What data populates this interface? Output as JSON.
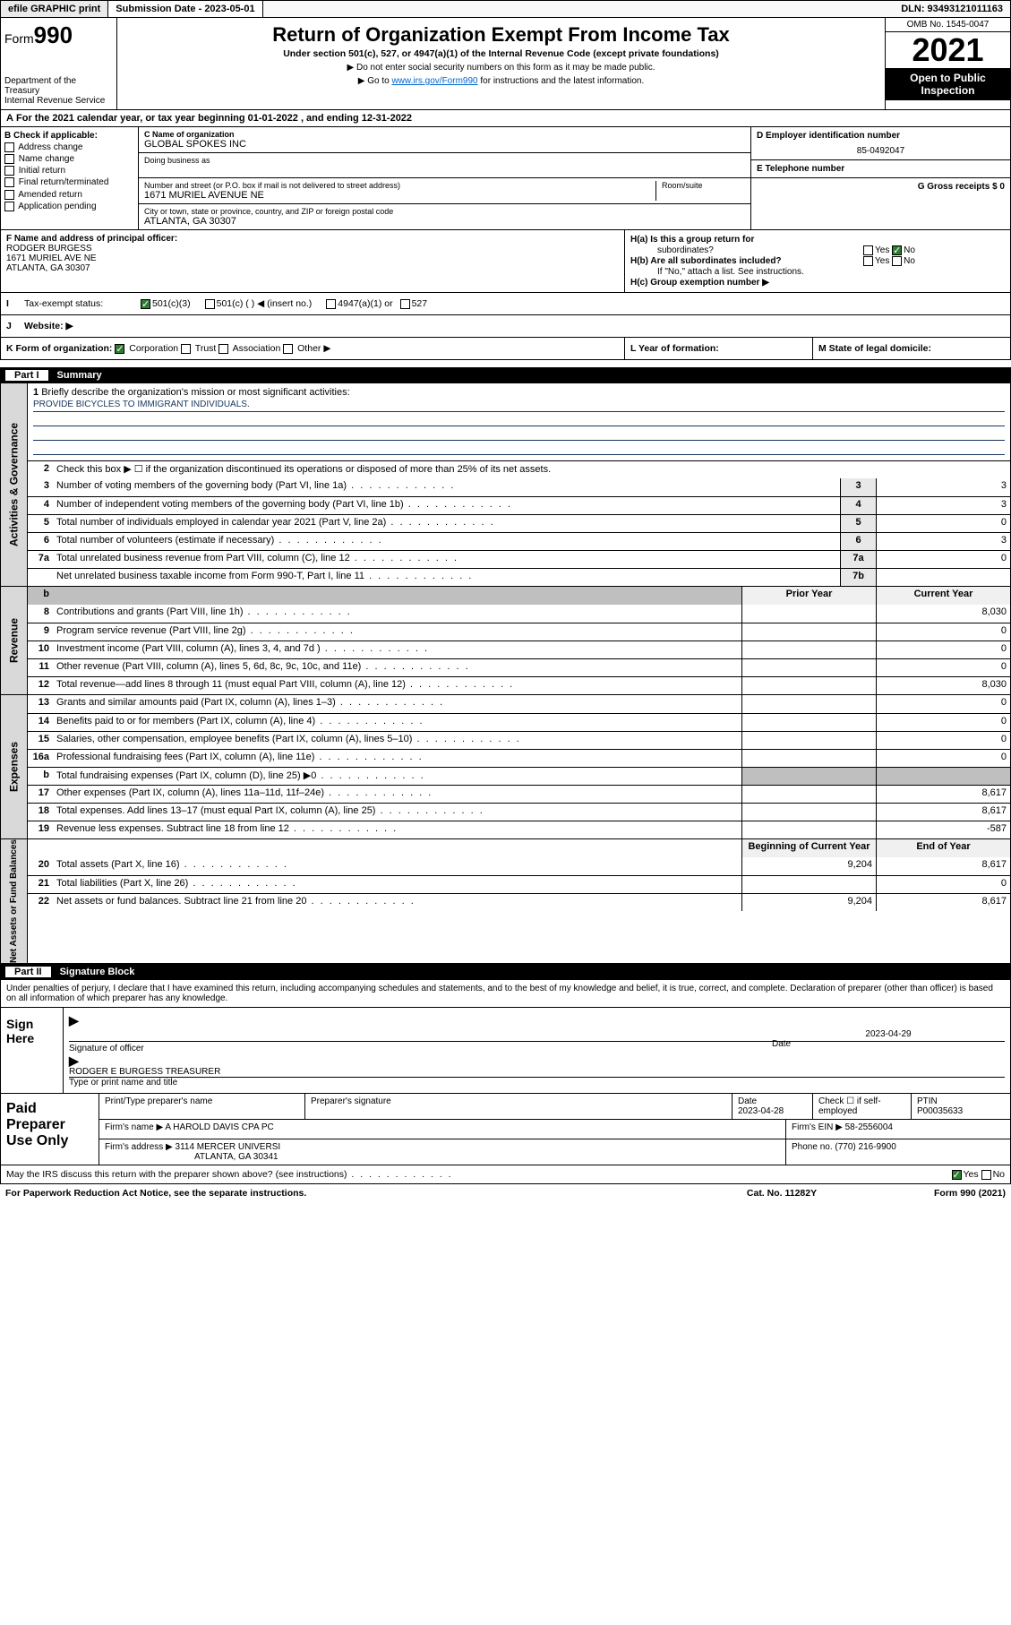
{
  "topbar": {
    "efile": "efile GRAPHIC print",
    "subdate_lbl": "Submission Date - 2023-05-01",
    "dln": "DLN: 93493121011163"
  },
  "header": {
    "form_prefix": "Form",
    "form_no": "990",
    "dept": "Department of the Treasury",
    "irs": "Internal Revenue Service",
    "title": "Return of Organization Exempt From Income Tax",
    "sub": "Under section 501(c), 527, or 4947(a)(1) of the Internal Revenue Code (except private foundations)",
    "line1": "▶ Do not enter social security numbers on this form as it may be made public.",
    "line2_pre": "▶ Go to ",
    "line2_link": "www.irs.gov/Form990",
    "line2_post": " for instructions and the latest information.",
    "omb": "OMB No. 1545-0047",
    "year": "2021",
    "open": "Open to Public Inspection"
  },
  "band_a": "For the 2021 calendar year, or tax year beginning 01-01-2022   , and ending 12-31-2022",
  "b": {
    "title": "B Check if applicable:",
    "opts": [
      "Address change",
      "Name change",
      "Initial return",
      "Final return/terminated",
      "Amended return",
      "Application pending"
    ]
  },
  "c": {
    "name_lbl": "C Name of organization",
    "name": "GLOBAL SPOKES INC",
    "dba_lbl": "Doing business as",
    "addr_lbl": "Number and street (or P.O. box if mail is not delivered to street address)",
    "room_lbl": "Room/suite",
    "addr": "1671 MURIEL AVENUE NE",
    "city_lbl": "City or town, state or province, country, and ZIP or foreign postal code",
    "city": "ATLANTA, GA  30307"
  },
  "d": {
    "lbl": "D Employer identification number",
    "val": "85-0492047"
  },
  "e": {
    "lbl": "E Telephone number",
    "val": ""
  },
  "g": {
    "lbl": "G Gross receipts $ 0"
  },
  "f": {
    "lbl": "F  Name and address of principal officer:",
    "name": "RODGER BURGESS",
    "addr1": "1671 MURIEL AVE NE",
    "addr2": "ATLANTA, GA  30307"
  },
  "h": {
    "ha": "H(a)  Is this a group return for",
    "ha2": "subordinates?",
    "hb": "H(b)  Are all subordinates included?",
    "hc1": "If \"No,\" attach a list. See instructions.",
    "hc2": "H(c)  Group exemption number ▶",
    "yes": "Yes",
    "no": "No"
  },
  "i": {
    "lbl": "Tax-exempt status:",
    "o1": "501(c)(3)",
    "o2": "501(c) (  ) ◀ (insert no.)",
    "o3": "4947(a)(1) or",
    "o4": "527"
  },
  "j": {
    "lbl": "Website: ▶"
  },
  "k": {
    "lbl": "K Form of organization:",
    "o1": "Corporation",
    "o2": "Trust",
    "o3": "Association",
    "o4": "Other ▶",
    "l": "L Year of formation:",
    "m": "M State of legal domicile:"
  },
  "part1": {
    "hdr": "Part I",
    "title": "Summary",
    "l1": "Briefly describe the organization's mission or most significant activities:",
    "mission": "PROVIDE BICYCLES TO IMMIGRANT INDIVIDUALS.",
    "l2": "Check this box ▶ ☐  if the organization discontinued its operations or disposed of more than 25% of its net assets.",
    "rows_gov": [
      {
        "n": "3",
        "d": "Number of voting members of the governing body (Part VI, line 1a)",
        "bn": "3",
        "v": "3"
      },
      {
        "n": "4",
        "d": "Number of independent voting members of the governing body (Part VI, line 1b)",
        "bn": "4",
        "v": "3"
      },
      {
        "n": "5",
        "d": "Total number of individuals employed in calendar year 2021 (Part V, line 2a)",
        "bn": "5",
        "v": "0"
      },
      {
        "n": "6",
        "d": "Total number of volunteers (estimate if necessary)",
        "bn": "6",
        "v": "3"
      },
      {
        "n": "7a",
        "d": "Total unrelated business revenue from Part VIII, column (C), line 12",
        "bn": "7a",
        "v": "0"
      },
      {
        "n": "",
        "d": "Net unrelated business taxable income from Form 990-T, Part I, line 11",
        "bn": "7b",
        "v": ""
      }
    ],
    "col_prior": "Prior Year",
    "col_curr": "Current Year",
    "rows_rev": [
      {
        "n": "8",
        "d": "Contributions and grants (Part VIII, line 1h)",
        "p": "",
        "c": "8,030"
      },
      {
        "n": "9",
        "d": "Program service revenue (Part VIII, line 2g)",
        "p": "",
        "c": "0"
      },
      {
        "n": "10",
        "d": "Investment income (Part VIII, column (A), lines 3, 4, and 7d )",
        "p": "",
        "c": "0"
      },
      {
        "n": "11",
        "d": "Other revenue (Part VIII, column (A), lines 5, 6d, 8c, 9c, 10c, and 11e)",
        "p": "",
        "c": "0"
      },
      {
        "n": "12",
        "d": "Total revenue—add lines 8 through 11 (must equal Part VIII, column (A), line 12)",
        "p": "",
        "c": "8,030"
      }
    ],
    "rows_exp": [
      {
        "n": "13",
        "d": "Grants and similar amounts paid (Part IX, column (A), lines 1–3)",
        "p": "",
        "c": "0"
      },
      {
        "n": "14",
        "d": "Benefits paid to or for members (Part IX, column (A), line 4)",
        "p": "",
        "c": "0"
      },
      {
        "n": "15",
        "d": "Salaries, other compensation, employee benefits (Part IX, column (A), lines 5–10)",
        "p": "",
        "c": "0"
      },
      {
        "n": "16a",
        "d": "Professional fundraising fees (Part IX, column (A), line 11e)",
        "p": "",
        "c": "0"
      },
      {
        "n": "b",
        "d": "Total fundraising expenses (Part IX, column (D), line 25) ▶0",
        "p": "shade",
        "c": "shade"
      },
      {
        "n": "17",
        "d": "Other expenses (Part IX, column (A), lines 11a–11d, 11f–24e)",
        "p": "",
        "c": "8,617"
      },
      {
        "n": "18",
        "d": "Total expenses. Add lines 13–17 (must equal Part IX, column (A), line 25)",
        "p": "",
        "c": "8,617"
      },
      {
        "n": "19",
        "d": "Revenue less expenses. Subtract line 18 from line 12",
        "p": "",
        "c": "-587"
      }
    ],
    "col_beg": "Beginning of Current Year",
    "col_end": "End of Year",
    "rows_net": [
      {
        "n": "20",
        "d": "Total assets (Part X, line 16)",
        "p": "9,204",
        "c": "8,617"
      },
      {
        "n": "21",
        "d": "Total liabilities (Part X, line 26)",
        "p": "",
        "c": "0"
      },
      {
        "n": "22",
        "d": "Net assets or fund balances. Subtract line 21 from line 20",
        "p": "9,204",
        "c": "8,617"
      }
    ],
    "side_gov": "Activities & Governance",
    "side_rev": "Revenue",
    "side_exp": "Expenses",
    "side_net": "Net Assets or Fund Balances"
  },
  "part2": {
    "hdr": "Part II",
    "title": "Signature Block",
    "decl": "Under penalties of perjury, I declare that I have examined this return, including accompanying schedules and statements, and to the best of my knowledge and belief, it is true, correct, and complete. Declaration of preparer (other than officer) is based on all information of which preparer has any knowledge.",
    "sign_here": "Sign Here",
    "sig_of_officer": "Signature of officer",
    "date_lbl": "Date",
    "date": "2023-04-29",
    "name_title": "RODGER E BURGESS TREASURER",
    "type_or_print": "Type or print name and title"
  },
  "paid": {
    "title": "Paid Preparer Use Only",
    "h1": "Print/Type preparer's name",
    "h2": "Preparer's signature",
    "h3": "Date",
    "h3v": "2023-04-28",
    "h4": "Check ☐ if self-employed",
    "h5": "PTIN",
    "h5v": "P00035633",
    "firm_name_lbl": "Firm's name      ▶",
    "firm_name": "A HAROLD DAVIS CPA PC",
    "firm_ein_lbl": "Firm's EIN ▶",
    "firm_ein": "58-2556004",
    "firm_addr_lbl": "Firm's address ▶",
    "firm_addr1": "3114 MERCER UNIVERSI",
    "firm_addr2": "ATLANTA, GA  30341",
    "phone_lbl": "Phone no.",
    "phone": "(770) 216-9900"
  },
  "footer": {
    "may": "May the IRS discuss this return with the preparer shown above? (see instructions)",
    "yes": "Yes",
    "no": "No",
    "pwra": "For Paperwork Reduction Act Notice, see the separate instructions.",
    "cat": "Cat. No. 11282Y",
    "form": "Form 990 (2021)"
  }
}
